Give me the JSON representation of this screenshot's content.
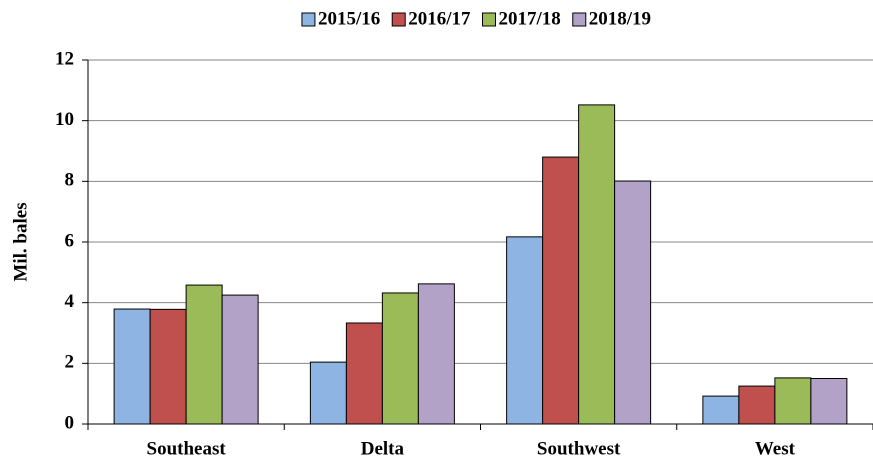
{
  "chart_data": {
    "type": "bar",
    "y_label": "Mil. bales",
    "categories": [
      "Southeast",
      "Delta",
      "Southwest",
      "West"
    ],
    "series": [
      {
        "name": "2015/16",
        "color": "#8eb4e3",
        "values": [
          3.79,
          2.04,
          6.17,
          0.92
        ]
      },
      {
        "name": "2016/17",
        "color": "#c0504d",
        "values": [
          3.78,
          3.33,
          8.8,
          1.25
        ]
      },
      {
        "name": "2017/18",
        "color": "#9bbb59",
        "values": [
          4.58,
          4.32,
          10.52,
          1.52
        ]
      },
      {
        "name": "2018/19",
        "color": "#b3a2c7",
        "values": [
          4.25,
          4.62,
          8.01,
          1.5
        ]
      }
    ],
    "ylim": [
      0,
      12
    ],
    "yticks": [
      0,
      2,
      4,
      6,
      8,
      10,
      12
    ],
    "grid": true,
    "legend": "top"
  }
}
